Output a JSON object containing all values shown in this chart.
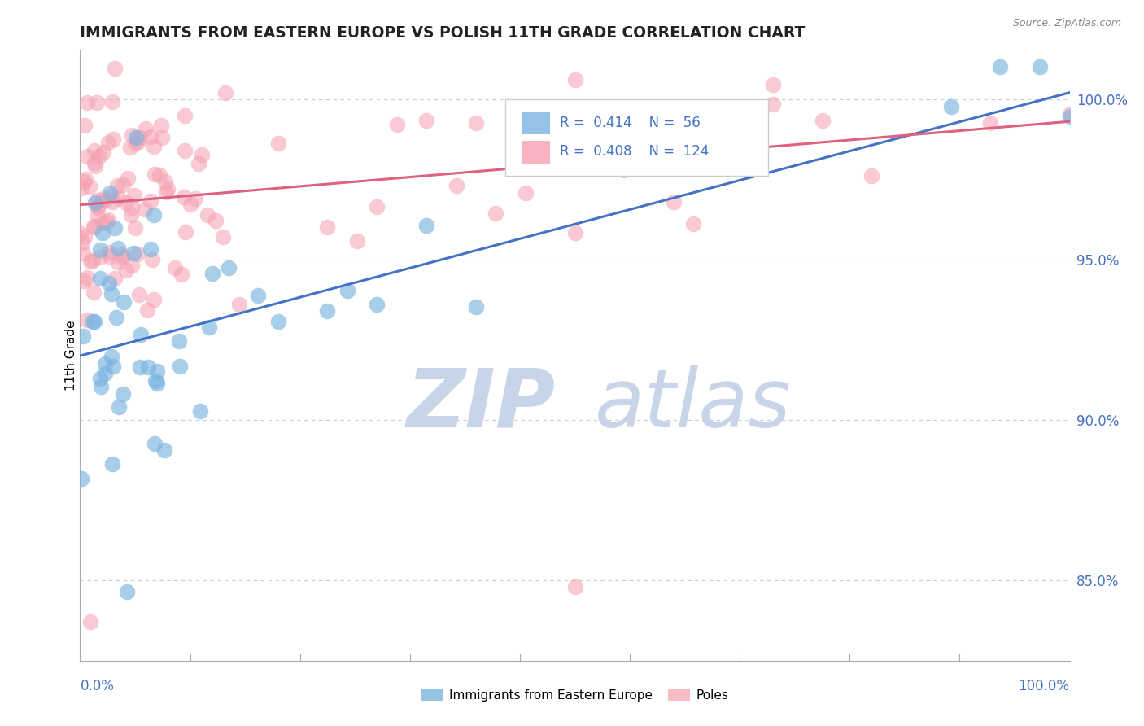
{
  "title": "IMMIGRANTS FROM EASTERN EUROPE VS POLISH 11TH GRADE CORRELATION CHART",
  "source": "Source: ZipAtlas.com",
  "ylabel": "11th Grade",
  "right_ytick_labels": [
    "85.0%",
    "90.0%",
    "95.0%",
    "100.0%"
  ],
  "right_ytick_vals": [
    0.85,
    0.9,
    0.95,
    1.0
  ],
  "legend_entries": [
    "Immigrants from Eastern Europe",
    "Poles"
  ],
  "legend_r_blue": "0.414",
  "legend_n_blue": "56",
  "legend_r_pink": "0.408",
  "legend_n_pink": "124",
  "blue_color": "#7ab4e0",
  "pink_color": "#f5a0b0",
  "trend_blue": "#4472c4",
  "trend_pink": "#e06080",
  "ymin": 0.825,
  "ymax": 1.015,
  "xmin": 0.0,
  "xmax": 1.0,
  "grid_color": "#cccccc",
  "title_color": "#222222",
  "axis_label_color": "#4472c4",
  "watermark_zip_color": "#c8d4e8",
  "watermark_atlas_color": "#c8d4e8"
}
